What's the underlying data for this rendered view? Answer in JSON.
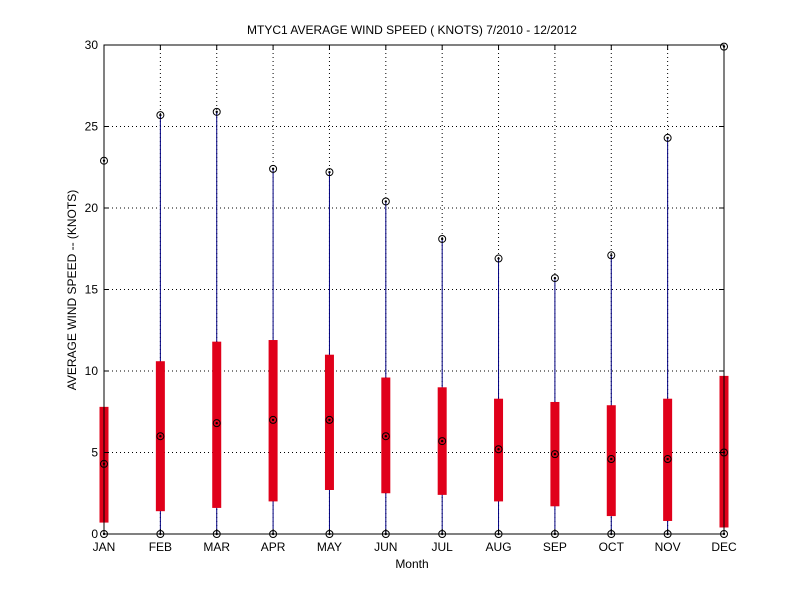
{
  "chart_data": {
    "type": "box",
    "title": "MTYC1  AVERAGE WIND SPEED ( KNOTS) 7/2010 - 12/2012",
    "xlabel": "Month",
    "ylabel": "AVERAGE WIND SPEED -- (KNOTS)",
    "ylim": [
      0,
      30
    ],
    "yticks": [
      "0",
      "5",
      "10",
      "15",
      "20",
      "25",
      "30"
    ],
    "grid": true,
    "categories": [
      "JAN",
      "FEB",
      "MAR",
      "APR",
      "MAY",
      "JUN",
      "JUL",
      "AUG",
      "SEP",
      "OCT",
      "NOV",
      "DEC"
    ],
    "series": [
      {
        "min": [
          0,
          0,
          0,
          0,
          0,
          0,
          0,
          0,
          0,
          0,
          0,
          0
        ]
      },
      {
        "max": [
          22.9,
          25.7,
          25.9,
          22.4,
          22.2,
          20.4,
          18.1,
          16.9,
          15.7,
          17.1,
          24.3,
          29.9
        ]
      },
      {
        "q1": [
          0.7,
          1.4,
          1.6,
          2.0,
          2.7,
          2.5,
          2.4,
          2.0,
          1.7,
          1.1,
          0.8,
          0.4
        ]
      },
      {
        "q3": [
          7.8,
          10.6,
          11.8,
          11.9,
          11.0,
          9.6,
          9.0,
          8.3,
          8.1,
          7.9,
          8.3,
          9.7
        ]
      },
      {
        "median": [
          4.3,
          6.0,
          6.8,
          7.0,
          7.0,
          6.0,
          5.7,
          5.2,
          4.9,
          4.6,
          4.6,
          5.0
        ]
      }
    ],
    "colors": {
      "whisker": "#000080",
      "box": "#e0001a",
      "marker": "#000000",
      "grid": "#000000"
    }
  }
}
